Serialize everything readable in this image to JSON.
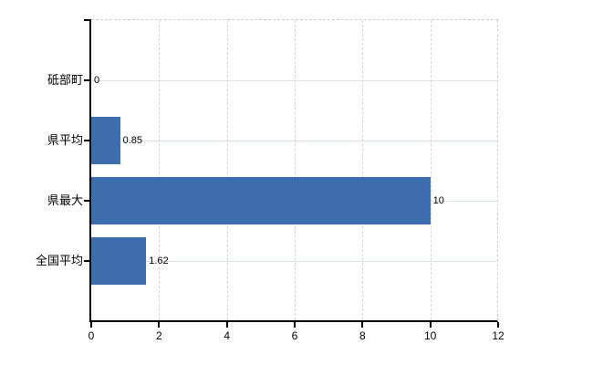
{
  "chart_data": {
    "type": "bar",
    "orientation": "horizontal",
    "title": "",
    "categories": [
      "砥部町",
      "県平均",
      "県最大",
      "全国平均"
    ],
    "values": [
      0,
      0.85,
      10,
      1.62
    ],
    "value_labels": [
      "0",
      "0.85",
      "10",
      "1.62"
    ],
    "xlim": [
      0,
      12
    ],
    "xticks": [
      0,
      2,
      4,
      6,
      8,
      10,
      12
    ],
    "xtick_labels": [
      "0",
      "2",
      "4",
      "6",
      "8",
      "10",
      "12"
    ],
    "xlabel": "",
    "ylabel": "",
    "legend": "none",
    "grid": {
      "vertical": "dashed",
      "horizontal": "solid"
    }
  },
  "colors": {
    "background": "#ffffff",
    "bar": "#3d6dae",
    "axis": "#000000",
    "label_text": "#000000",
    "h_gridline": "#dde6dd",
    "v_gridline": "#d7d3db",
    "border_dashed": "#d2ced4"
  }
}
